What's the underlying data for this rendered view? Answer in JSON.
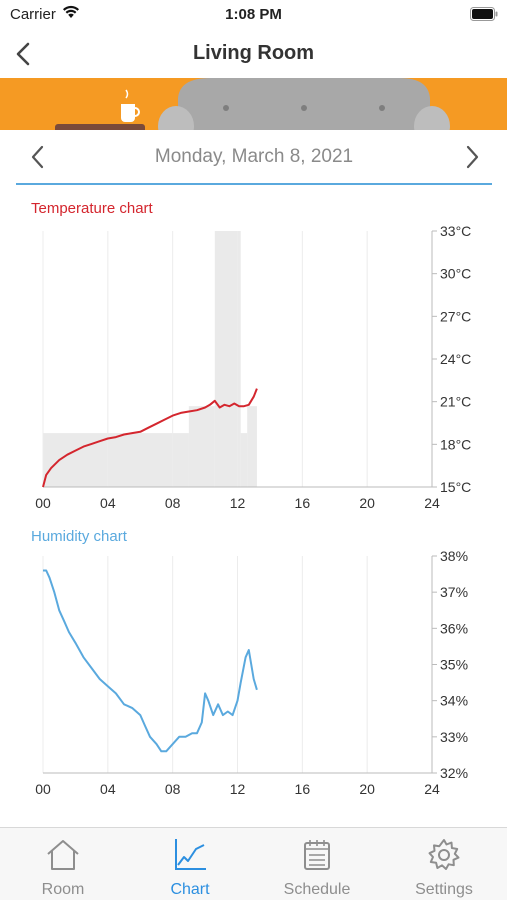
{
  "status_bar": {
    "carrier": "Carrier",
    "time": "1:08 PM"
  },
  "nav": {
    "title": "Living Room"
  },
  "date_selector": {
    "date": "Monday, March 8, 2021"
  },
  "colors": {
    "accent": "#2c8fe0",
    "banner": "#f59a23",
    "temperature_line": "#d4262e",
    "humidity_line": "#5aa9de",
    "tab_inactive": "#8e8e8e"
  },
  "chart_data": [
    {
      "type": "line",
      "title": "Temperature chart",
      "x_ticks": [
        "00",
        "04",
        "08",
        "12",
        "16",
        "20",
        "24"
      ],
      "y_ticks": [
        "15°C",
        "18°C",
        "21°C",
        "24°C",
        "27°C",
        "30°C",
        "33°C"
      ],
      "xlim": [
        0,
        24
      ],
      "ylim": [
        15,
        34
      ],
      "y_axis_side": "right",
      "grid": true,
      "heating_bands": [
        {
          "x0": 0,
          "x1": 9,
          "level": 19
        },
        {
          "x0": 9,
          "x1": 10.6,
          "level": 21
        },
        {
          "x0": 10.6,
          "x1": 12.2,
          "level": 34
        },
        {
          "x0": 12.2,
          "x1": 12.6,
          "level": 19
        },
        {
          "x0": 12.6,
          "x1": 13.2,
          "level": 21
        }
      ],
      "series": [
        {
          "x": [
            0,
            0.2,
            0.5,
            1,
            1.5,
            2,
            2.5,
            3,
            3.5,
            4,
            4.5,
            5,
            5.5,
            6,
            6.5,
            7,
            7.5,
            8,
            8.5,
            9,
            9.5,
            10,
            10.3,
            10.6,
            10.9,
            11.2,
            11.5,
            11.8,
            12.1,
            12.4,
            12.7,
            13,
            13.2
          ],
          "y": [
            15,
            15.9,
            16.4,
            17,
            17.4,
            17.7,
            18,
            18.2,
            18.4,
            18.6,
            18.7,
            18.9,
            19,
            19.1,
            19.4,
            19.7,
            20,
            20.3,
            20.5,
            20.6,
            20.7,
            20.9,
            21.1,
            21.4,
            20.9,
            21.1,
            21,
            21.2,
            21,
            21,
            21.1,
            21.7,
            22.3
          ]
        }
      ]
    },
    {
      "type": "line",
      "title": "Humidity chart",
      "x_ticks": [
        "00",
        "04",
        "08",
        "12",
        "16",
        "20",
        "24"
      ],
      "y_ticks": [
        "32%",
        "33%",
        "34%",
        "35%",
        "36%",
        "37%",
        "38%"
      ],
      "xlim": [
        0,
        24
      ],
      "ylim": [
        32,
        38
      ],
      "y_axis_side": "right",
      "grid": true,
      "series": [
        {
          "x": [
            0,
            0.2,
            0.4,
            0.7,
            1,
            1.3,
            1.6,
            2,
            2.5,
            3,
            3.5,
            4,
            4.5,
            5,
            5.5,
            6,
            6.3,
            6.6,
            7,
            7.3,
            7.6,
            8,
            8.4,
            8.8,
            9.2,
            9.5,
            9.8,
            10,
            10.2,
            10.5,
            10.8,
            11.1,
            11.4,
            11.7,
            12,
            12.2,
            12.5,
            12.7,
            13,
            13.2
          ],
          "y": [
            37.6,
            37.6,
            37.4,
            37,
            36.5,
            36.2,
            35.9,
            35.6,
            35.2,
            34.9,
            34.6,
            34.4,
            34.2,
            33.9,
            33.8,
            33.6,
            33.3,
            33,
            32.8,
            32.6,
            32.6,
            32.8,
            33,
            33,
            33.1,
            33.1,
            33.4,
            34.2,
            34.0,
            33.6,
            33.9,
            33.6,
            33.7,
            33.6,
            34.0,
            34.5,
            35.2,
            35.4,
            34.6,
            34.3
          ]
        }
      ]
    }
  ],
  "tabs": [
    {
      "label": "Room",
      "icon": "house-icon"
    },
    {
      "label": "Chart",
      "icon": "line-chart-icon"
    },
    {
      "label": "Schedule",
      "icon": "calendar-icon"
    },
    {
      "label": "Settings",
      "icon": "gear-icon"
    }
  ]
}
